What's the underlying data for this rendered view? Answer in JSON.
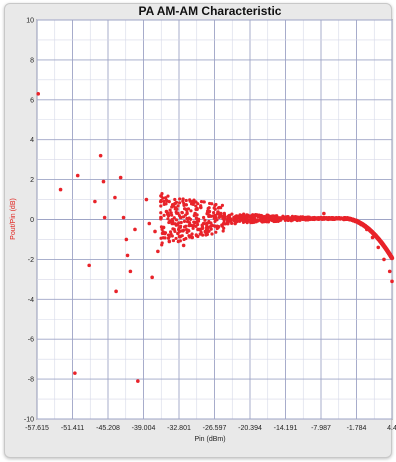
{
  "chart_data": {
    "type": "scatter",
    "title": "PA AM-AM Characteristic",
    "xlabel": "Pin (dBm)",
    "ylabel": "Pout/Pin (dB)",
    "xlim": [
      -57.615,
      4.4
    ],
    "ylim": [
      -10,
      10
    ],
    "x_ticks": [
      "-57.615",
      "-51.411",
      "-45.208",
      "-39.004",
      "-32.801",
      "-26.597",
      "-20.394",
      "-14.191",
      "-7.987",
      "-1.784",
      "4.4"
    ],
    "y_ticks": [
      "-10",
      "-8",
      "-6",
      "-4",
      "-2",
      "0",
      "2",
      "4",
      "6",
      "8",
      "10"
    ],
    "grid": true,
    "series": [
      {
        "color": "#e8232a",
        "points": [
          [
            -57.4,
            6.3
          ],
          [
            -51.0,
            -7.7
          ],
          [
            -53.5,
            1.5
          ],
          [
            -50.5,
            2.2
          ],
          [
            -48.5,
            -2.3
          ],
          [
            -46.5,
            3.2
          ],
          [
            -46.0,
            1.9
          ],
          [
            -45.8,
            0.1
          ],
          [
            -47.5,
            0.9
          ],
          [
            -44.0,
            1.1
          ],
          [
            -43.0,
            2.1
          ],
          [
            -42.5,
            0.1
          ],
          [
            -42.0,
            -1.0
          ],
          [
            -41.8,
            -1.8
          ],
          [
            -41.3,
            -2.6
          ],
          [
            -43.8,
            -3.6
          ],
          [
            -40.5,
            -0.5
          ],
          [
            -40.0,
            -8.1
          ],
          [
            -38.5,
            1.0
          ],
          [
            -38.0,
            -0.2
          ],
          [
            -37.5,
            -2.9
          ],
          [
            -37.0,
            -0.6
          ],
          [
            -36.5,
            -1.6
          ],
          [
            -36.0,
            0.9
          ],
          [
            -35.5,
            -0.4
          ],
          [
            -35.0,
            0.4
          ],
          [
            -34.5,
            -1.1
          ],
          [
            -34.0,
            -0.2
          ],
          [
            -33.5,
            0.8
          ],
          [
            -33.0,
            -0.7
          ],
          [
            -32.5,
            0.1
          ],
          [
            -32.0,
            -1.3
          ],
          [
            -31.5,
            0.5
          ],
          [
            -31.0,
            -0.3
          ],
          [
            -30.5,
            -0.9
          ],
          [
            -30.0,
            0.3
          ],
          [
            -29.5,
            -0.5
          ],
          [
            -29.0,
            0.6
          ],
          [
            -28.5,
            -0.2
          ],
          [
            -28.0,
            -0.7
          ],
          [
            -27.5,
            0.4
          ],
          [
            -27.0,
            -0.3
          ],
          [
            -26.5,
            0.2
          ],
          [
            -26.0,
            -0.4
          ],
          [
            -25.5,
            0.3
          ],
          [
            -25.0,
            -0.2
          ],
          [
            -24.0,
            0.2
          ],
          [
            -23.0,
            -0.2
          ],
          [
            -22.0,
            0.2
          ],
          [
            -21.0,
            -0.1
          ],
          [
            -20.0,
            0.1
          ],
          [
            -18.0,
            -0.1
          ],
          [
            -16.0,
            0.1
          ],
          [
            -14.0,
            0.0
          ],
          [
            -12.0,
            0.1
          ],
          [
            -10.0,
            0.05
          ],
          [
            -8.0,
            0.1
          ],
          [
            -7.5,
            0.3
          ],
          [
            -6.0,
            0.05
          ],
          [
            -4.0,
            0.0
          ],
          [
            -2.0,
            -0.1
          ],
          [
            -1.0,
            -0.25
          ],
          [
            0.0,
            -0.5
          ],
          [
            1.0,
            -0.9
          ],
          [
            2.0,
            -1.4
          ],
          [
            3.0,
            -2.0
          ],
          [
            4.0,
            -2.6
          ],
          [
            4.4,
            -3.1
          ]
        ]
      }
    ]
  }
}
